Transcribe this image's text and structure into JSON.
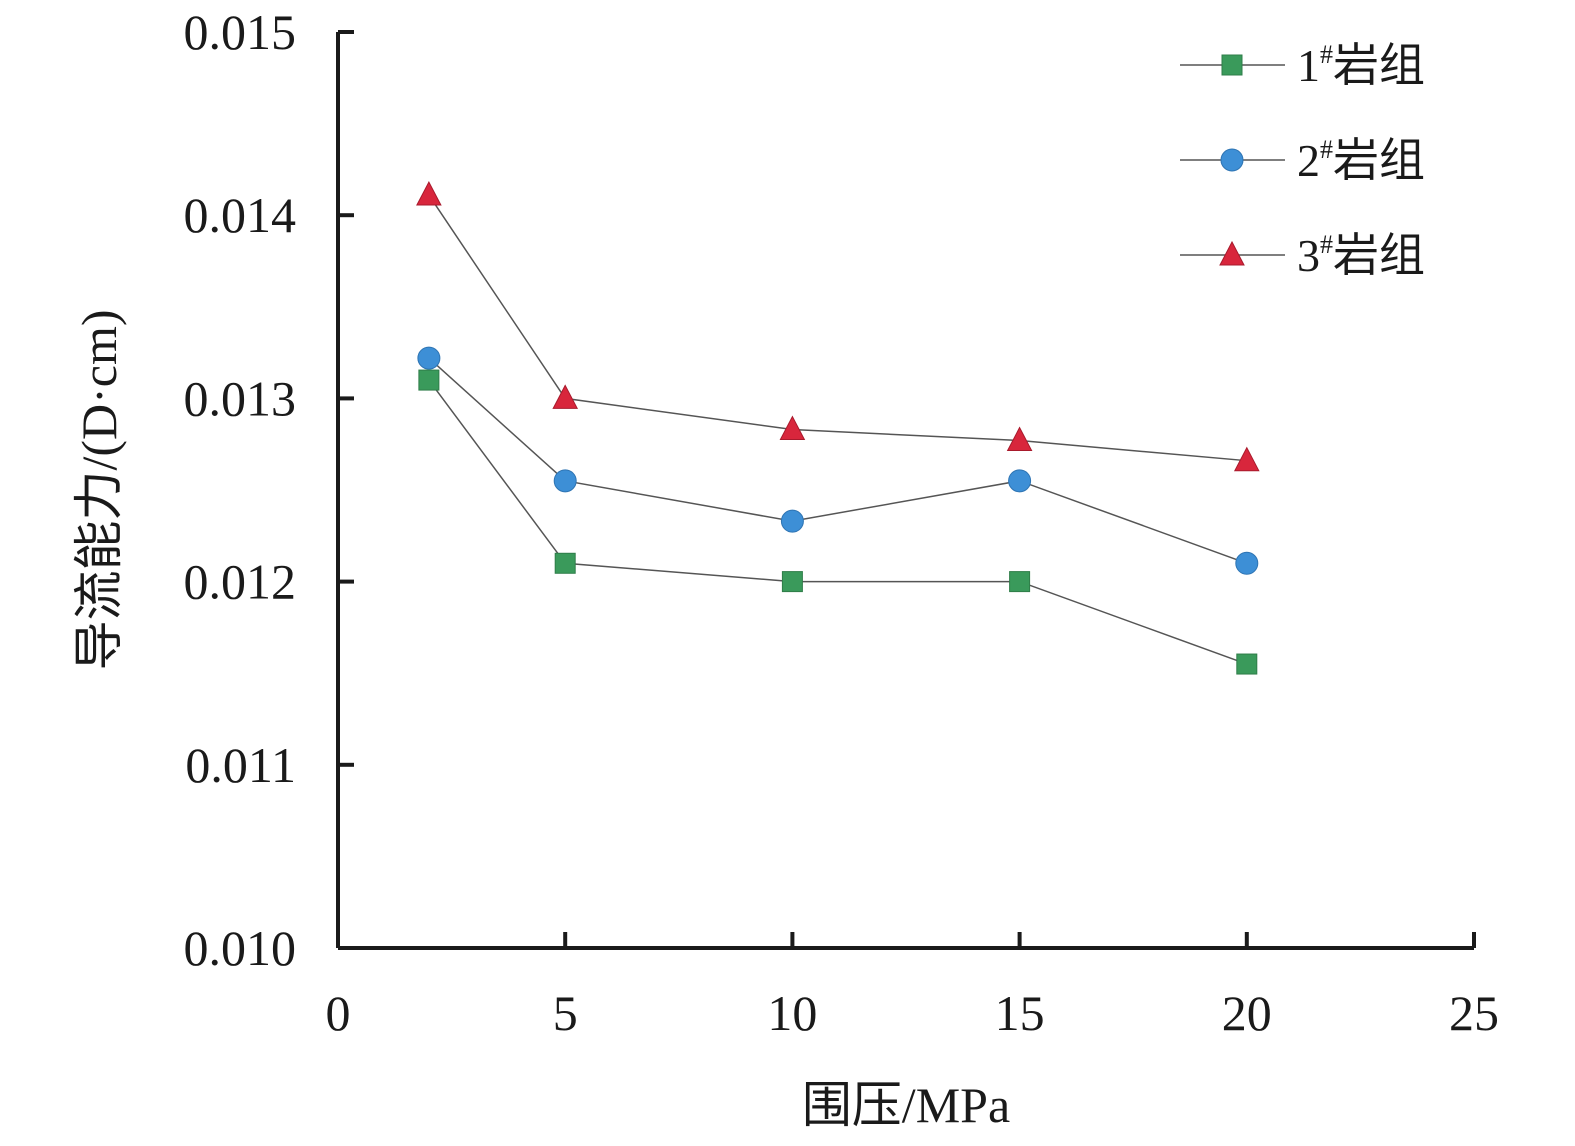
{
  "chart_data": {
    "type": "line",
    "xlabel": "围压/MPa",
    "ylabel": "导流能力/(D·cm)",
    "xlim": [
      0,
      25
    ],
    "ylim": [
      0.01,
      0.015
    ],
    "x_ticks": [
      "0",
      "5",
      "10",
      "15",
      "20",
      "25"
    ],
    "y_ticks": [
      "0.010",
      "0.011",
      "0.012",
      "0.013",
      "0.014",
      "0.015"
    ],
    "x_tick_values": [
      0,
      5,
      10,
      15,
      20,
      25
    ],
    "y_tick_values": [
      0.01,
      0.011,
      0.012,
      0.013,
      0.014,
      0.015
    ],
    "grid": false,
    "legend_position": "top-right",
    "x": [
      2,
      5,
      10,
      15,
      20
    ],
    "series": [
      {
        "name_num": "1",
        "name_sup": "#",
        "name_rest": "岩组",
        "marker": "square",
        "color": "#3a9a5b",
        "values": [
          0.0131,
          0.0121,
          0.012,
          0.012,
          0.01155
        ]
      },
      {
        "name_num": "2",
        "name_sup": "#",
        "name_rest": "岩组",
        "marker": "circle",
        "color": "#3d8fd6",
        "values": [
          0.01322,
          0.01255,
          0.01233,
          0.01255,
          0.0121
        ]
      },
      {
        "name_num": "3",
        "name_sup": "#",
        "name_rest": "岩组",
        "marker": "triangle",
        "color": "#d8263c",
        "values": [
          0.01411,
          0.013,
          0.01283,
          0.01277,
          0.01266
        ]
      }
    ]
  }
}
